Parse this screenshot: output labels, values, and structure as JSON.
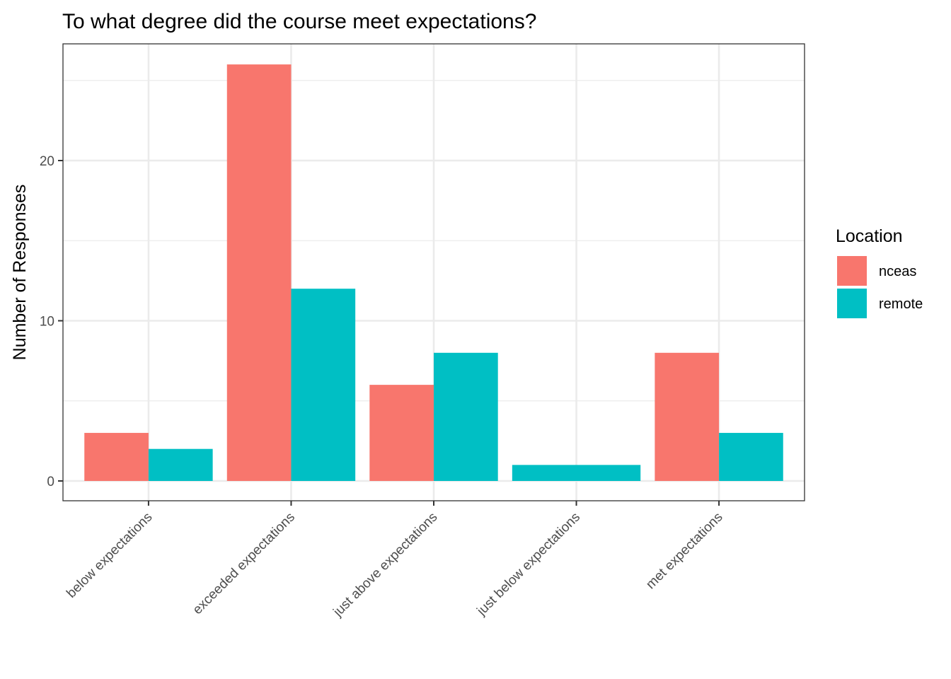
{
  "chart_data": {
    "type": "bar",
    "title": "To what degree did the course meet expectations?",
    "xlabel": "",
    "ylabel": "Number of Responses",
    "categories": [
      "below expectations",
      "exceeded expectations",
      "just above expectations",
      "just below expectations",
      "met expectations"
    ],
    "series": [
      {
        "name": "nceas",
        "color": "#F8766D",
        "values": [
          3,
          26,
          6,
          null,
          8
        ]
      },
      {
        "name": "remote",
        "color": "#00BFC4",
        "values": [
          2,
          12,
          8,
          1,
          3
        ]
      }
    ],
    "y_ticks": [
      0,
      10,
      20
    ],
    "ylim": [
      -1.3,
      27.3
    ],
    "grid": true,
    "legend": {
      "title": "Location",
      "position": "right"
    }
  }
}
